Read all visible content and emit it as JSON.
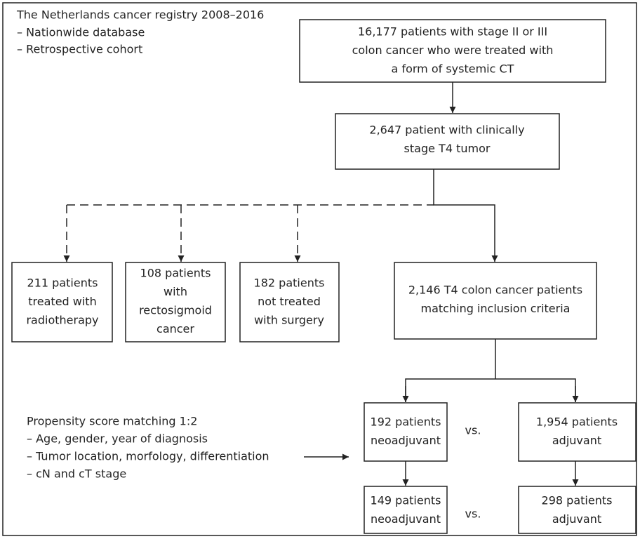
{
  "intro": {
    "title": "The Netherlands cancer registry 2008–2016",
    "items": [
      "– Nationwide database",
      "– Retrospective cohort"
    ]
  },
  "nodes": [
    {
      "lines": [
        "16,177 patients with stage II or III",
        "colon cancer who were treated with",
        "a form of systemic CT"
      ]
    },
    {
      "lines": [
        "2,647 patient with clinically",
        "stage T4 tumor"
      ]
    },
    {
      "lines": [
        "211 patients",
        "treated with",
        "radiotherapy"
      ]
    },
    {
      "lines": [
        "108 patients",
        "with",
        "rectosigmoid",
        "cancer"
      ]
    },
    {
      "lines": [
        "182 patients",
        "not treated",
        "with surgery"
      ]
    },
    {
      "lines": [
        "2,146 T4 colon cancer patients",
        "matching inclusion criteria"
      ]
    },
    {
      "lines": [
        "192 patients",
        "neoadjuvant"
      ]
    },
    {
      "lines": [
        "1,954 patients",
        "adjuvant"
      ]
    },
    {
      "lines": [
        "149 patients",
        "neoadjuvant"
      ]
    },
    {
      "lines": [
        "298 patients",
        "adjuvant"
      ]
    }
  ],
  "comparisons": [
    "vs.",
    "vs."
  ],
  "matching": {
    "title": "Propensity score matching 1:2",
    "items": [
      "– Age, gender, year of diagnosis",
      "– Tumor location, morfology, differentiation",
      "– cN and cT stage"
    ]
  }
}
